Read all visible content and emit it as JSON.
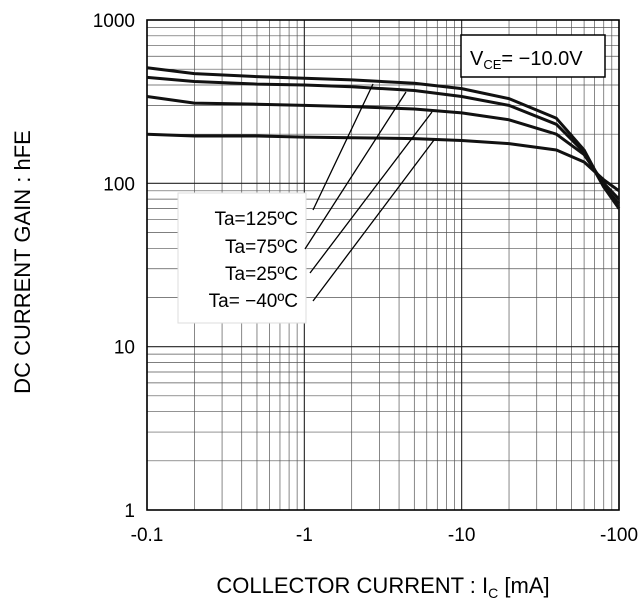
{
  "chart_data": {
    "type": "line",
    "xlabel": "COLLECTOR CURRENT : I",
    "xlabel_sub": "C",
    "xlabel_unit": " [mA]",
    "ylabel": "DC CURRENT GAIN : hFE",
    "x_scale": "log",
    "y_scale": "log",
    "xlim": [
      -0.1,
      -100
    ],
    "ylim": [
      1,
      1000
    ],
    "x_ticks": [
      -0.1,
      -1,
      -10,
      -100
    ],
    "x_tick_labels": [
      "-0.1",
      "-1",
      "-10",
      "-100"
    ],
    "y_ticks": [
      1,
      10,
      100,
      1000
    ],
    "y_tick_labels": [
      "1",
      "10",
      "100",
      "1000"
    ],
    "grid": true,
    "condition": {
      "v": "V",
      "sub": "CE",
      "rest": "= −10.0V"
    },
    "series": [
      {
        "name": "Ta=125ºC",
        "x": [
          -0.1,
          -0.2,
          -0.5,
          -1,
          -2,
          -5,
          -10,
          -20,
          -40,
          -60,
          -80,
          -100
        ],
        "values": [
          510,
          470,
          450,
          440,
          430,
          410,
          380,
          330,
          250,
          160,
          95,
          75
        ]
      },
      {
        "name": "Ta=75ºC",
        "x": [
          -0.1,
          -0.2,
          -0.5,
          -1,
          -2,
          -5,
          -10,
          -20,
          -40,
          -60,
          -80,
          -100
        ],
        "values": [
          445,
          420,
          405,
          400,
          390,
          370,
          340,
          300,
          230,
          155,
          95,
          70
        ]
      },
      {
        "name": "Ta=25ºC",
        "x": [
          -0.1,
          -0.2,
          -0.5,
          -1,
          -2,
          -5,
          -10,
          -20,
          -40,
          -60,
          -80,
          -100
        ],
        "values": [
          340,
          310,
          305,
          300,
          295,
          285,
          270,
          245,
          200,
          150,
          100,
          80
        ]
      },
      {
        "name": "Ta= −40ºC",
        "x": [
          -0.1,
          -0.2,
          -0.5,
          -1,
          -2,
          -5,
          -10,
          -20,
          -40,
          -60,
          -80,
          -100
        ],
        "values": [
          200,
          195,
          195,
          192,
          190,
          188,
          183,
          175,
          160,
          135,
          105,
          90
        ]
      }
    ],
    "legend_location": "center-left"
  }
}
